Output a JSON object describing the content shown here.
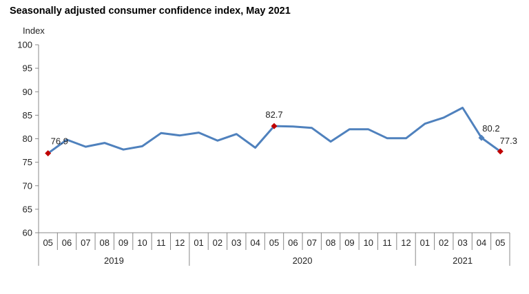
{
  "chart_data": {
    "type": "line",
    "title": "Seasonally adjusted consumer confidence index, May 2021",
    "ylabel": "Index",
    "ylim": [
      60,
      100
    ],
    "yticks": [
      60,
      65,
      70,
      75,
      80,
      85,
      90,
      95,
      100
    ],
    "categories": [
      "05",
      "06",
      "07",
      "08",
      "09",
      "10",
      "11",
      "12",
      "01",
      "02",
      "03",
      "04",
      "05",
      "06",
      "07",
      "08",
      "09",
      "10",
      "11",
      "12",
      "01",
      "02",
      "03",
      "04",
      "05"
    ],
    "years": [
      {
        "label": "2019",
        "start": 0,
        "end": 7
      },
      {
        "label": "2020",
        "start": 8,
        "end": 19
      },
      {
        "label": "2021",
        "start": 20,
        "end": 24
      }
    ],
    "series": [
      {
        "color": "#4F81BD",
        "values": [
          76.9,
          79.8,
          78.3,
          79.1,
          77.7,
          78.4,
          81.2,
          80.7,
          81.3,
          79.6,
          81.0,
          78.1,
          82.7,
          82.6,
          82.3,
          79.4,
          82.0,
          82.0,
          80.1,
          80.1,
          83.2,
          84.5,
          86.6,
          80.2,
          77.3
        ]
      }
    ],
    "annotations": [
      {
        "index": 0,
        "label": "76.9",
        "marker": "diamond",
        "color": "#C00000"
      },
      {
        "index": 12,
        "label": "82.7",
        "marker": "diamond",
        "color": "#C00000"
      },
      {
        "index": 23,
        "label": "80.2",
        "marker": "diamond",
        "color": "#4F81BD"
      },
      {
        "index": 24,
        "label": "77.3",
        "marker": "diamond",
        "color": "#C00000"
      }
    ],
    "grid": false,
    "legend": "none"
  }
}
